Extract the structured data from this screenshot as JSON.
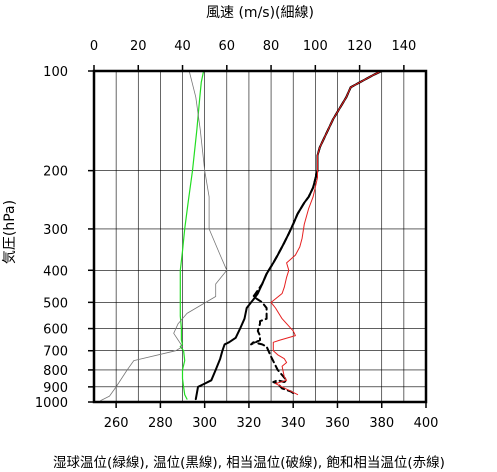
{
  "chart_data": {
    "type": "line",
    "title": "",
    "top_axis": {
      "label": "風速 (m/s)(細線)",
      "range": [
        0,
        150
      ],
      "ticks": [
        0,
        20,
        40,
        60,
        80,
        100,
        120,
        140
      ]
    },
    "bottom_axis": {
      "label": "湿球温位(緑線), 温位(黒線), 相当温位(破線), 飽和相当温位(赤線)",
      "range": [
        250,
        400
      ],
      "ticks": [
        260,
        280,
        300,
        320,
        340,
        360,
        380,
        400
      ]
    },
    "y_axis": {
      "label": "気圧(hPa)",
      "scale": "log",
      "reversed": true,
      "range": [
        1000,
        100
      ],
      "ticks": [
        100,
        200,
        300,
        400,
        500,
        600,
        700,
        800,
        900,
        1000
      ]
    },
    "grid": true,
    "series": [
      {
        "name": "湿球温位",
        "axis": "bottom",
        "style": "green",
        "color": "#22dd22",
        "points": [
          [
            292,
            980
          ],
          [
            291,
            950
          ],
          [
            290.5,
            900
          ],
          [
            290,
            850
          ],
          [
            290,
            800
          ],
          [
            291,
            750
          ],
          [
            290.5,
            700
          ],
          [
            289,
            680
          ],
          [
            290,
            670
          ],
          [
            289.5,
            650
          ],
          [
            289.5,
            600
          ],
          [
            289,
            550
          ],
          [
            289,
            500
          ],
          [
            289,
            450
          ],
          [
            289,
            400
          ],
          [
            290,
            350
          ],
          [
            291,
            300
          ],
          [
            292.5,
            250
          ],
          [
            294.5,
            200
          ],
          [
            296.5,
            150
          ],
          [
            297.8,
            120
          ],
          [
            298.5,
            108
          ],
          [
            299.5,
            100
          ]
        ]
      },
      {
        "name": "風速",
        "axis": "top",
        "style": "thin-gray",
        "color": "#777777",
        "points": [
          [
            3,
            990
          ],
          [
            7,
            960
          ],
          [
            10,
            900
          ],
          [
            15,
            800
          ],
          [
            18,
            750
          ],
          [
            37,
            700
          ],
          [
            40,
            680
          ],
          [
            36,
            620
          ],
          [
            38,
            580
          ],
          [
            42,
            540
          ],
          [
            55,
            480
          ],
          [
            55,
            440
          ],
          [
            60,
            400
          ],
          [
            57,
            360
          ],
          [
            52,
            300
          ],
          [
            52,
            240
          ],
          [
            50,
            200
          ],
          [
            48,
            150
          ],
          [
            46,
            120
          ],
          [
            43,
            100
          ]
        ]
      },
      {
        "name": "温位",
        "axis": "bottom",
        "style": "black-solid",
        "color": "#000000",
        "points": [
          [
            296,
            980
          ],
          [
            296.5,
            940
          ],
          [
            297,
            900
          ],
          [
            300,
            880
          ],
          [
            303,
            860
          ],
          [
            305,
            800
          ],
          [
            307,
            740
          ],
          [
            308,
            700
          ],
          [
            309,
            670
          ],
          [
            311,
            660
          ],
          [
            314,
            640
          ],
          [
            316,
            600
          ],
          [
            318,
            560
          ],
          [
            319,
            520
          ],
          [
            321,
            500
          ],
          [
            322,
            490
          ],
          [
            324,
            470
          ],
          [
            326,
            440
          ],
          [
            328,
            410
          ],
          [
            331,
            380
          ],
          [
            333,
            360
          ],
          [
            336,
            330
          ],
          [
            338,
            310
          ],
          [
            340,
            290
          ],
          [
            342,
            270
          ],
          [
            345,
            250
          ],
          [
            347,
            240
          ],
          [
            349,
            225
          ],
          [
            351,
            200
          ],
          [
            351,
            180
          ],
          [
            352,
            170
          ],
          [
            358,
            140
          ],
          [
            364,
            120
          ],
          [
            366,
            112
          ],
          [
            376,
            103
          ],
          [
            380,
            100
          ]
        ]
      },
      {
        "name": "相当温位",
        "axis": "bottom",
        "style": "black-dashed",
        "color": "#000000",
        "points": [
          [
            340,
            940
          ],
          [
            339,
            930
          ],
          [
            335,
            910
          ],
          [
            333,
            880
          ],
          [
            331,
            870
          ],
          [
            333,
            860
          ],
          [
            336,
            870
          ],
          [
            337,
            860
          ],
          [
            333,
            800
          ],
          [
            330,
            730
          ],
          [
            328,
            680
          ],
          [
            326,
            670
          ],
          [
            322,
            660
          ],
          [
            321,
            670
          ],
          [
            325,
            650
          ],
          [
            325,
            630
          ],
          [
            324,
            610
          ],
          [
            325,
            580
          ],
          [
            325,
            570
          ],
          [
            328,
            560
          ],
          [
            328,
            540
          ],
          [
            328,
            520
          ],
          [
            326,
            500
          ],
          [
            324,
            490
          ],
          [
            322,
            480
          ],
          [
            323,
            470
          ],
          [
            326,
            440
          ],
          [
            328,
            410
          ],
          [
            331,
            380
          ],
          [
            333,
            360
          ],
          [
            336,
            330
          ],
          [
            338,
            310
          ],
          [
            340,
            290
          ],
          [
            342,
            270
          ],
          [
            345,
            250
          ],
          [
            347,
            240
          ],
          [
            349,
            225
          ],
          [
            351,
            200
          ],
          [
            351,
            180
          ],
          [
            352,
            170
          ],
          [
            358,
            140
          ],
          [
            364,
            120
          ],
          [
            366,
            112
          ],
          [
            376,
            103
          ],
          [
            380,
            100
          ]
        ]
      },
      {
        "name": "飽和相当温位",
        "axis": "bottom",
        "style": "red-solid",
        "color": "#e62020",
        "points": [
          [
            342,
            950
          ],
          [
            335,
            900
          ],
          [
            332,
            880
          ],
          [
            337,
            860
          ],
          [
            336,
            840
          ],
          [
            335,
            780
          ],
          [
            337,
            760
          ],
          [
            336,
            740
          ],
          [
            333,
            720
          ],
          [
            331,
            700
          ],
          [
            331,
            660
          ],
          [
            334,
            650
          ],
          [
            341,
            630
          ],
          [
            340,
            610
          ],
          [
            335,
            560
          ],
          [
            332,
            520
          ],
          [
            330,
            500
          ],
          [
            335,
            470
          ],
          [
            336,
            450
          ],
          [
            337,
            420
          ],
          [
            338,
            400
          ],
          [
            337,
            380
          ],
          [
            341,
            360
          ],
          [
            343,
            340
          ],
          [
            344,
            320
          ],
          [
            345,
            290
          ],
          [
            347,
            260
          ],
          [
            349,
            240
          ],
          [
            351,
            210
          ],
          [
            351,
            180
          ],
          [
            352,
            170
          ],
          [
            358,
            140
          ],
          [
            364,
            120
          ],
          [
            366,
            112
          ],
          [
            376,
            103
          ],
          [
            380,
            100
          ]
        ]
      }
    ]
  }
}
